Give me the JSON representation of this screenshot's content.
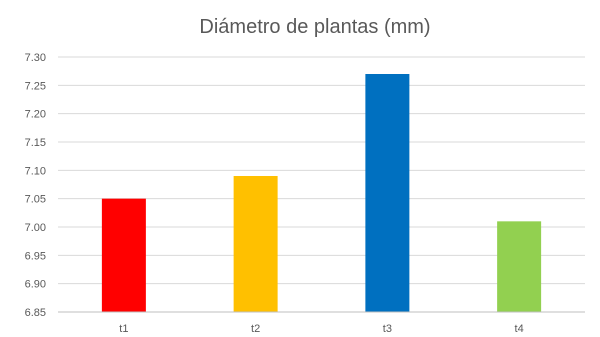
{
  "chart_data": {
    "type": "bar",
    "title": "Diámetro de plantas (mm)",
    "categories": [
      "t1",
      "t2",
      "t3",
      "t4"
    ],
    "values": [
      7.05,
      7.09,
      7.27,
      7.01
    ],
    "colors": [
      "#ff0000",
      "#ffc000",
      "#0070c0",
      "#92d050"
    ],
    "ylim": [
      6.85,
      7.3
    ],
    "yticks": [
      "6.85",
      "6.90",
      "6.95",
      "7.00",
      "7.05",
      "7.10",
      "7.15",
      "7.20",
      "7.25",
      "7.30"
    ],
    "xlabel": "",
    "ylabel": "",
    "grid": true,
    "legend": "none"
  }
}
